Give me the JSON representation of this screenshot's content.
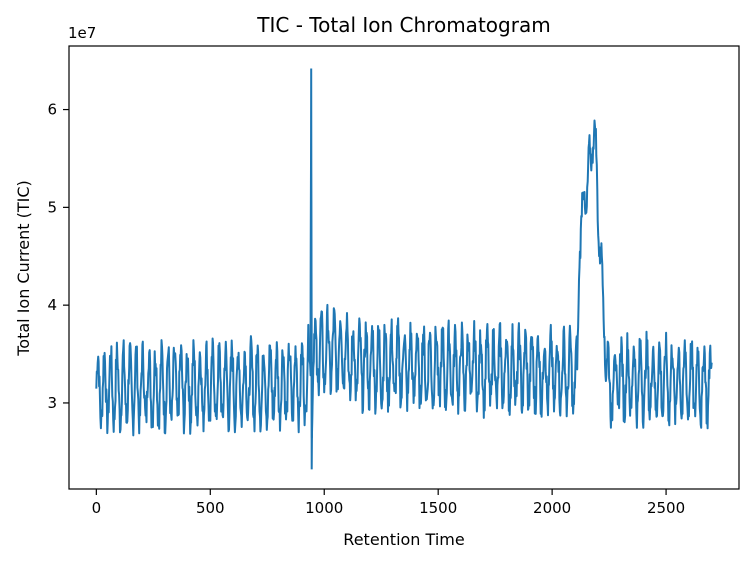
{
  "chart_data": {
    "type": "line",
    "title": "TIC - Total Ion Chromatogram",
    "xlabel": "Retention Time",
    "ylabel": "Total Ion Current (TIC)",
    "y_offset_label": "1e7",
    "xlim": [
      -120,
      2820
    ],
    "ylim": [
      2.12,
      6.65
    ],
    "x_ticks": [
      0,
      500,
      1000,
      1500,
      2000,
      2500
    ],
    "x_tick_labels": [
      "0",
      "500",
      "1000",
      "1500",
      "2000",
      "2500"
    ],
    "y_ticks": [
      3,
      4,
      5,
      6
    ],
    "y_tick_labels": [
      "3",
      "4",
      "5",
      "6"
    ],
    "grid": false,
    "legend": "none",
    "series": [
      {
        "color": "#1f77b4",
        "x": [
          0,
          920,
          940,
          943,
          945,
          948,
          960,
          1100,
          1110,
          2080,
          2110,
          2120,
          2130,
          2150,
          2170,
          2180,
          2190,
          2200,
          2210,
          2230,
          2250,
          2270,
          2700
        ],
        "values": [
          3.15,
          3.2,
          3.4,
          6.42,
          2.32,
          3.3,
          3.5,
          3.55,
          3.4,
          3.3,
          3.2,
          4.7,
          4.9,
          5.15,
          5.5,
          5.85,
          5.6,
          5.05,
          4.6,
          3.8,
          3.1,
          3.25,
          3.2
        ],
        "oscillation_amplitude": 0.35,
        "oscillation_period": 28
      }
    ]
  }
}
